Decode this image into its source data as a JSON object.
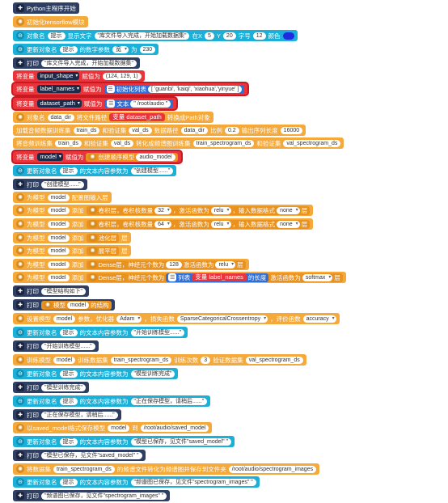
{
  "rows": [
    {
      "l": "Python主程序开始"
    },
    {
      "l": "初始化tensorflow模块"
    },
    {
      "a": "对象名",
      "obj": "提示",
      "b": "显示文字",
      "text": "\"库文件导入完成，开始加载数据集\"",
      "c": "在X",
      "x": "5",
      "d": "Y",
      "y": "20",
      "e": "字号",
      "fs": "12",
      "f": "颜色",
      "color": "#1f2be0"
    },
    {
      "a": "更新对象名",
      "obj": "提示",
      "b": "的数字参数",
      "param": "宽",
      "c": "为",
      "val": "230"
    },
    {
      "a": "打印",
      "text": "\"库文件导入完成，开始加载数据集\""
    },
    {
      "a": "将变量",
      "var": "input_shape",
      "b": "赋值为",
      "val": "(124, 129, 1)"
    },
    {
      "a": "将变量",
      "var": "label_names",
      "b": "赋值为",
      "c": "初始化列表",
      "val": "[ 'guanbi', 'kaiqi', 'xiaohua','yinyue' ]"
    },
    {
      "a": "将变量",
      "var": "dataset_path",
      "b": "赋值为",
      "c": "文本",
      "val": "\" /root/audio \""
    },
    {
      "a": "对象名",
      "obj": "data_dir",
      "b": "将文件路径",
      "c": "变量",
      "var": "dataset_path",
      "d": "转换成Path对象"
    },
    {
      "a": "加载音频数据训练集",
      "v1": "train_ds",
      "b": "和验证集",
      "v2": "val_ds",
      "c": "数据路径",
      "v3": "data_dir",
      "d": "比例",
      "v4": "0.2",
      "e": "输出序列长度",
      "v5": "16000"
    },
    {
      "a": "将音频训练集",
      "v1": "train_ds",
      "b": "和验证集",
      "v2": "val_ds",
      "c": "转化成频谱图训练集",
      "v3": "train_spectrogram_ds",
      "d": "和验证集",
      "v4": "val_spectrogram_ds"
    },
    {
      "a": "将变量",
      "var": "model",
      "b": "赋值为",
      "c": "创建顺序模型",
      "val": "audio_model"
    },
    {
      "a": "更新对象名",
      "obj": "提示",
      "b": "的文本内容参数为",
      "val": "\"创建模型......\""
    },
    {
      "a": "打印",
      "text": "\"创建模型......\""
    },
    {
      "a": "为模型",
      "m": "model",
      "b": "配置图输入层"
    },
    {
      "a": "为模型",
      "m": "model",
      "b": "添加",
      "c": "卷积层，卷积核数量",
      "n": "32",
      "d": "，激活函数为",
      "act": "relu",
      "e": "，输入数据格式",
      "fmt": "none",
      "f": "层"
    },
    {
      "a": "为模型",
      "m": "model",
      "b": "添加",
      "c": "卷积层，卷积核数量",
      "n": "64",
      "d": "，激活函数为",
      "act": "relu",
      "e": "，输入数据格式",
      "fmt": "none",
      "f": "层"
    },
    {
      "a": "为模型",
      "m": "model",
      "b": "添加",
      "c": "池化层",
      "f": "层"
    },
    {
      "a": "为模型",
      "m": "model",
      "b": "添加",
      "c": "展平层",
      "f": "层"
    },
    {
      "a": "为模型",
      "m": "model",
      "b": "添加",
      "c": "Dense层，神经元个数为",
      "n": "128",
      "d": "激活函数为",
      "act": "relu",
      "f": "层"
    },
    {
      "a": "为模型",
      "m": "model",
      "b": "添加",
      "c": "Dense层，神经元个数为",
      "list": "列表",
      "var": "label_names",
      "d": "的长度",
      "e": "激活函数为",
      "act": "softmax",
      "f": "层"
    },
    {
      "a": "打印",
      "text": "\"模型结构如下\""
    },
    {
      "a": "打印",
      "b": "模型",
      "m": "model",
      "c": "的结构"
    },
    {
      "a": "设置模型",
      "m": "model",
      "b": "参数，优化器",
      "opt": "Adam",
      "c": "，损失函数",
      "loss": "SparseCategoricalCrossentropy",
      "d": "，评价函数",
      "metric": "accuracy"
    },
    {
      "a": "更新对象名",
      "obj": "提示",
      "b": "的文本内容参数为",
      "val": "\"开始训练模型......\""
    },
    {
      "a": "打印",
      "text": "\"开始训练模型......\""
    },
    {
      "a": "训练模型",
      "m": "model",
      "b": "训练数据集",
      "v1": "train_spectrogram_ds",
      "c": "训练次数",
      "n": "3",
      "d": "验证数据集",
      "v2": "val_spectrogram_ds"
    },
    {
      "a": "更新对象名",
      "obj": "提示",
      "b": "的文本内容参数为",
      "val": "\"模型训练完成\""
    },
    {
      "a": "打印",
      "text": "\"模型训练完成\""
    },
    {
      "a": "更新对象名",
      "obj": "提示",
      "b": "的文本内容参数为",
      "val": "\"正在保存模型，请稍后......\""
    },
    {
      "a": "打印",
      "text": "\"正在保存模型，请稍后......\""
    },
    {
      "a": "以saved_model格式保存模型",
      "m": "model",
      "b": "到",
      "path": "/root/audio/saved_model"
    },
    {
      "a": "更新对象名",
      "obj": "提示",
      "b": "的文本内容参数为",
      "val": "\"模型已保存，见文件\"saved_model\" \""
    },
    {
      "a": "打印",
      "text": "\"模型已保存，见文件\"saved_model\" \""
    },
    {
      "a": "将数据集",
      "v1": "train_spectrogram_ds",
      "b": "的频谱文件转化为频谱图并保存到文件夹",
      "path": "/root/audio/spectrogram_images"
    },
    {
      "a": "更新对象名",
      "obj": "提示",
      "b": "的文本内容参数为",
      "val": "\"频谱图已保存，见文件\"spectrogram_images\" \""
    },
    {
      "a": "打印",
      "text": "\"频谱图已保存，见文件\"spectrogram_images\" \""
    }
  ]
}
